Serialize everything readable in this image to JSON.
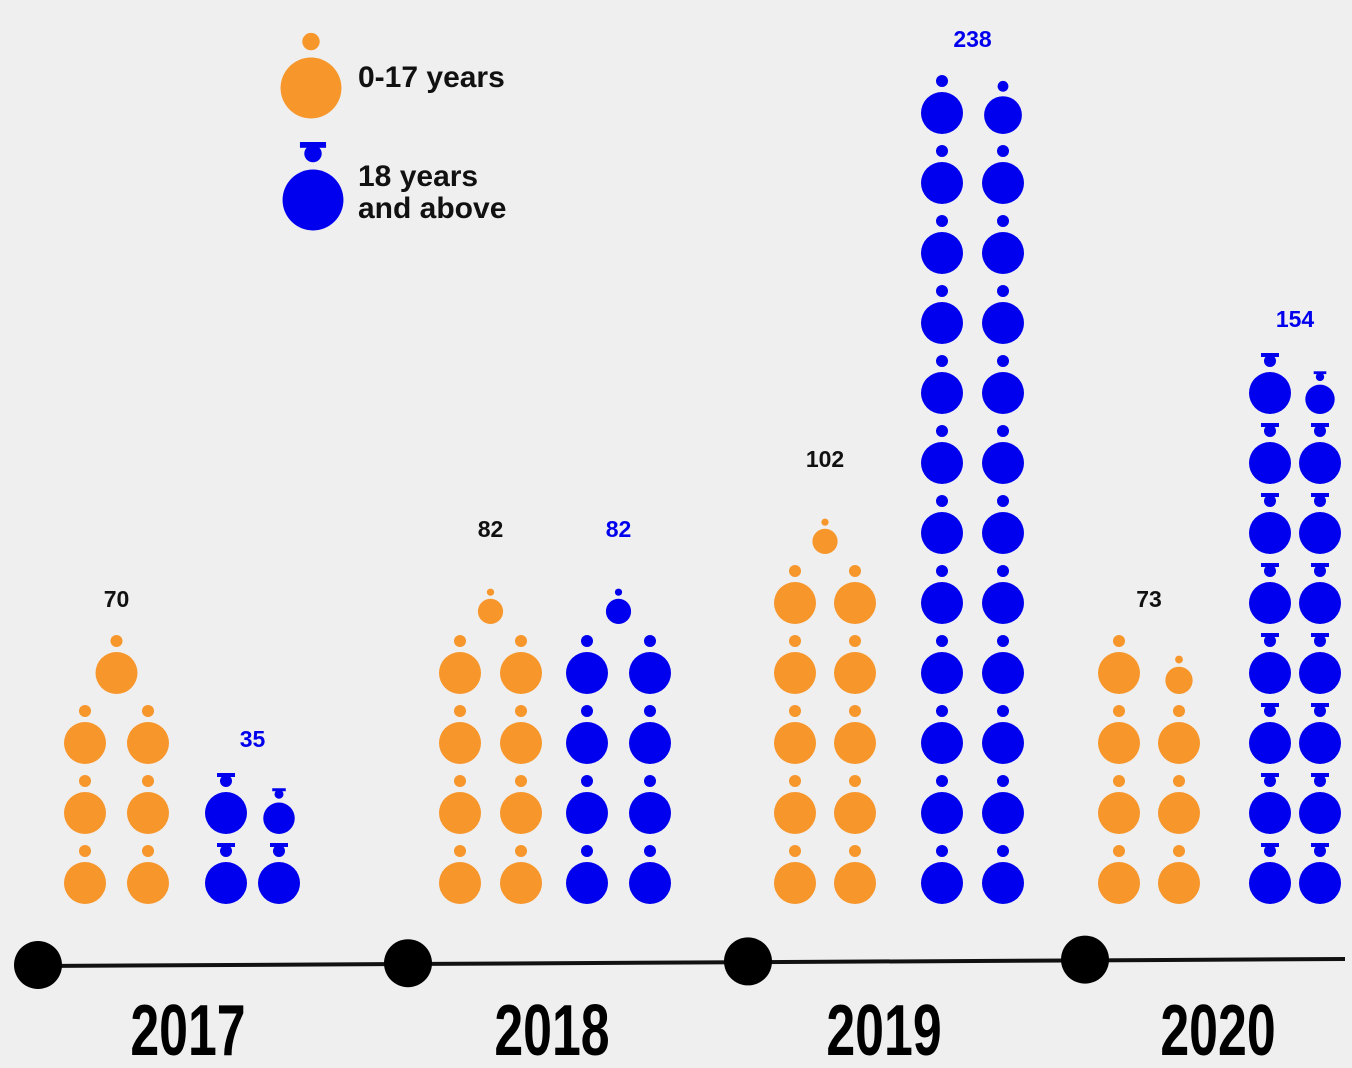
{
  "chart_data": {
    "type": "pictogram",
    "categories": [
      "2017",
      "2018",
      "2019",
      "2020"
    ],
    "series": [
      {
        "name": "0-17 years",
        "color": "#f7962a",
        "values": [
          70,
          82,
          102,
          73
        ]
      },
      {
        "name": "18 years and above",
        "color": "#0000ee",
        "values": [
          35,
          82,
          238,
          154
        ]
      }
    ]
  }
}
